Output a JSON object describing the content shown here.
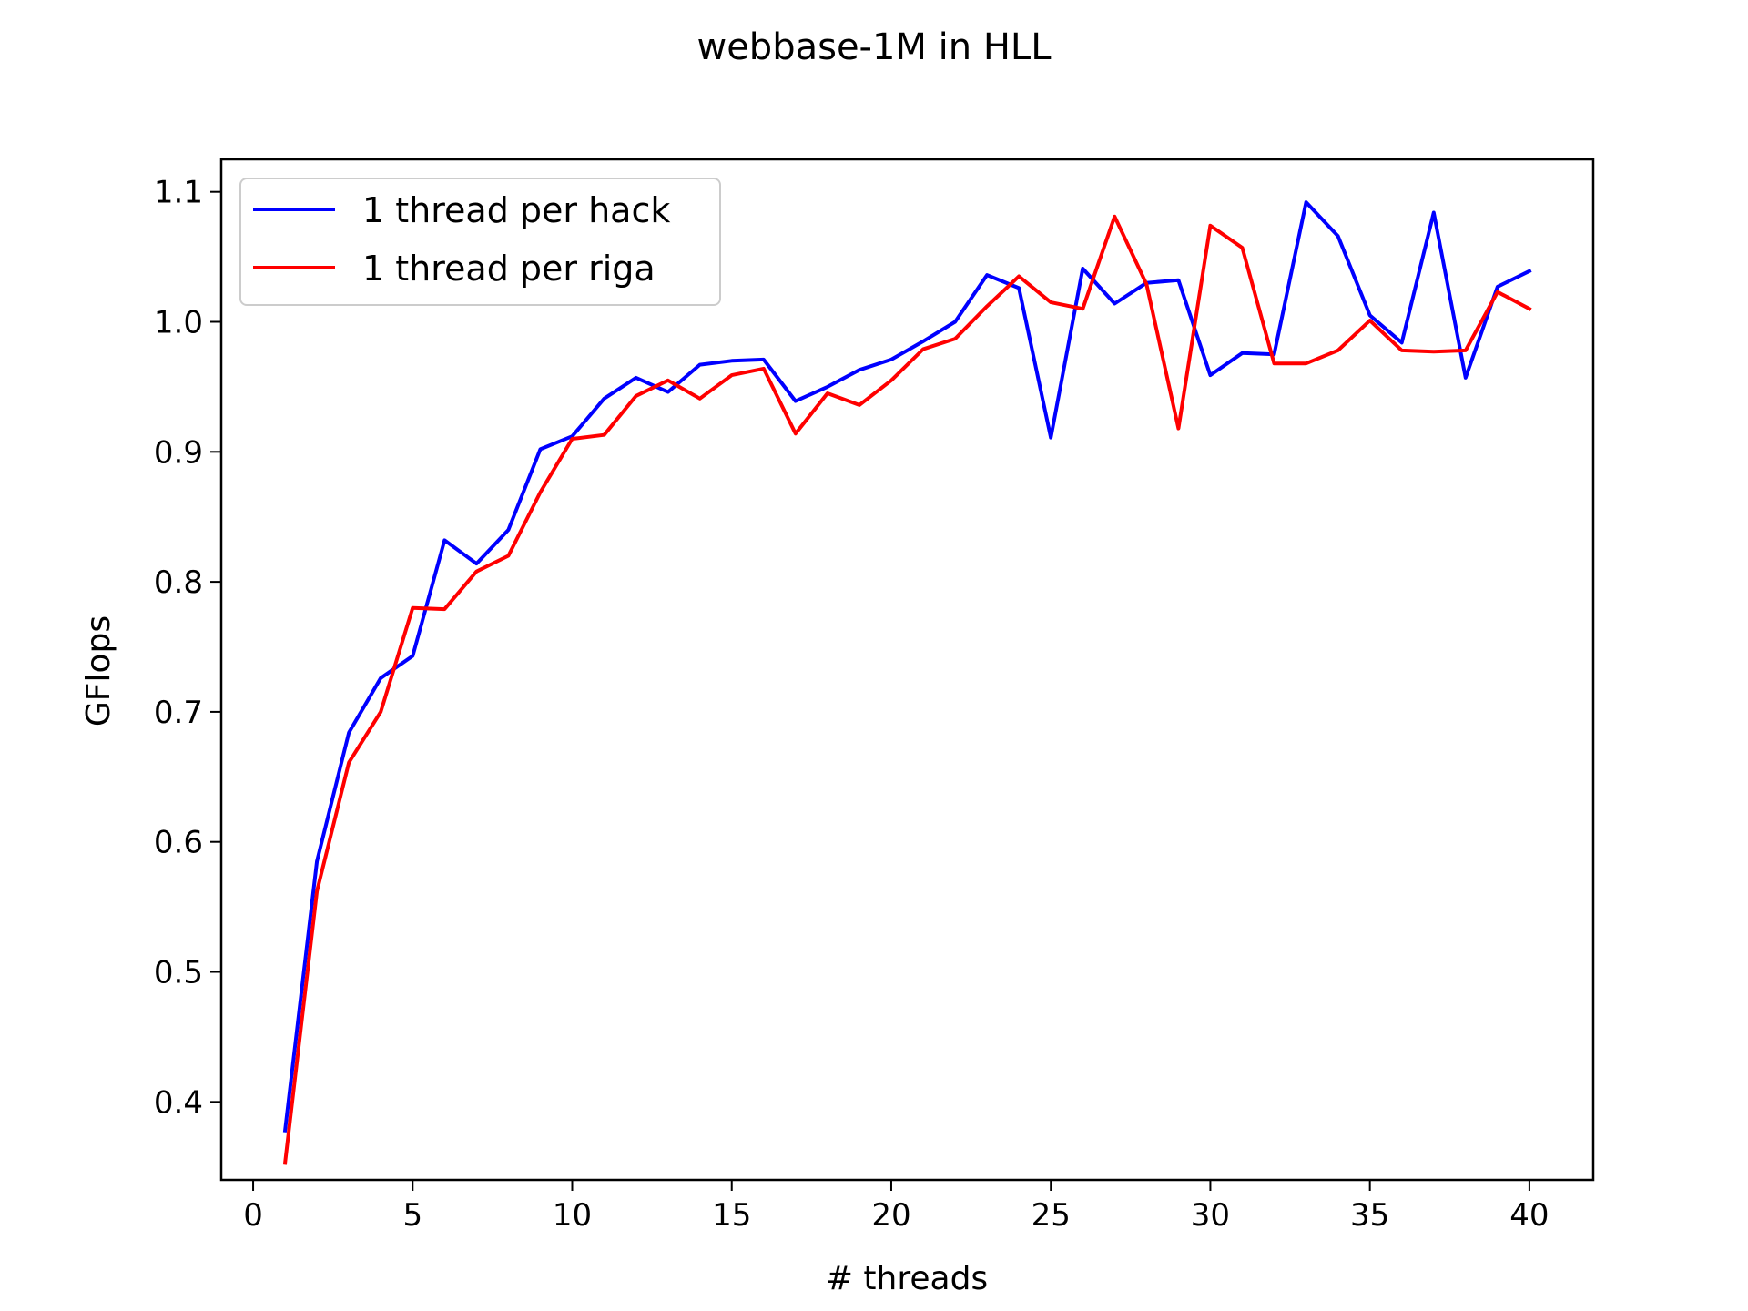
{
  "chart_data": {
    "type": "line",
    "title": "webbase-1M in HLL",
    "xlabel": "# threads",
    "ylabel": "GFlops",
    "xlim": [
      -1,
      42
    ],
    "ylim": [
      0.34,
      1.125
    ],
    "xticks": [
      0,
      5,
      10,
      15,
      20,
      25,
      30,
      35,
      40
    ],
    "yticks": [
      0.4,
      0.5,
      0.6,
      0.7,
      0.8,
      0.9,
      1.0,
      1.1
    ],
    "ytick_labels": [
      "0.4",
      "0.5",
      "0.6",
      "0.7",
      "0.8",
      "0.9",
      "1.0",
      "1.1"
    ],
    "grid": false,
    "legend_position": "top-left",
    "x": [
      1,
      2,
      3,
      4,
      5,
      6,
      7,
      8,
      9,
      10,
      11,
      12,
      13,
      14,
      15,
      16,
      17,
      18,
      19,
      20,
      21,
      22,
      23,
      24,
      25,
      26,
      27,
      28,
      29,
      30,
      31,
      32,
      33,
      34,
      35,
      36,
      37,
      38,
      39,
      40
    ],
    "series": [
      {
        "name": "1 thread per hack",
        "color": "#0000ff",
        "values": [
          0.378,
          0.585,
          0.684,
          0.726,
          0.743,
          0.832,
          0.814,
          0.84,
          0.902,
          0.912,
          0.941,
          0.957,
          0.946,
          0.967,
          0.97,
          0.971,
          0.939,
          0.95,
          0.963,
          0.971,
          0.985,
          1.0,
          1.036,
          1.026,
          0.911,
          1.041,
          1.014,
          1.03,
          1.032,
          0.959,
          0.976,
          0.975,
          1.092,
          1.066,
          1.005,
          0.984,
          1.084,
          0.957,
          1.027,
          1.039
        ]
      },
      {
        "name": "1 thread per riga",
        "color": "#ff0000",
        "values": [
          0.353,
          0.562,
          0.661,
          0.7,
          0.78,
          0.779,
          0.808,
          0.82,
          0.869,
          0.91,
          0.913,
          0.943,
          0.955,
          0.941,
          0.959,
          0.964,
          0.914,
          0.945,
          0.936,
          0.955,
          0.979,
          0.987,
          1.012,
          1.035,
          1.015,
          1.01,
          1.081,
          1.029,
          0.918,
          1.074,
          1.057,
          0.968,
          0.968,
          0.978,
          1.001,
          0.978,
          0.977,
          0.978,
          1.023,
          1.01
        ]
      }
    ]
  }
}
